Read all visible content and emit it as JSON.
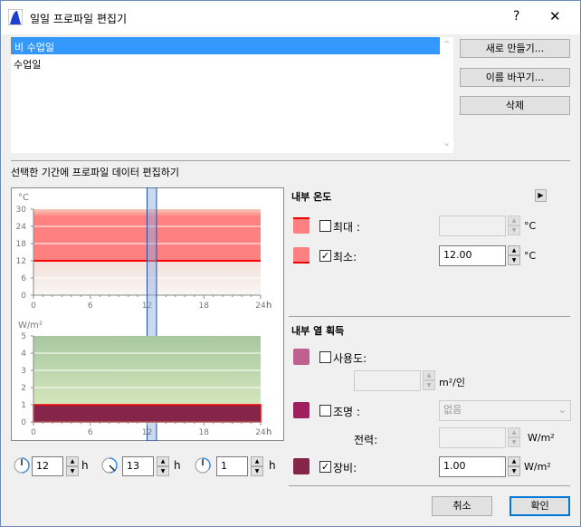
{
  "window": {
    "title": "일일 프로파일 편집기",
    "help": "?",
    "close": "✕"
  },
  "profiles": {
    "items": [
      {
        "label": "비 수업일",
        "selected": true
      },
      {
        "label": "수업일",
        "selected": false
      }
    ]
  },
  "buttons": {
    "new": "새로 만들기...",
    "rename": "이름 바꾸기...",
    "delete": "삭제",
    "cancel": "취소",
    "ok": "확인"
  },
  "section_edit": "선택한 기간에 프로파일 데이터 편집하기",
  "chart_data": [
    {
      "type": "area",
      "ylabel": "°C",
      "xlabel": "h",
      "xlim": [
        0,
        24
      ],
      "ylim": [
        0,
        30
      ],
      "xticks": [
        "0",
        "6",
        "12",
        "18",
        "24"
      ],
      "yticks": [
        "0",
        "6",
        "12",
        "18",
        "24",
        "30"
      ],
      "series": [
        {
          "name": "최소",
          "values": [
            [
              0,
              12
            ],
            [
              24,
              12
            ]
          ],
          "color": "#ff0000"
        }
      ],
      "fill_color": "#ff8080",
      "selection": [
        12,
        13
      ]
    },
    {
      "type": "area",
      "ylabel": "W/m²",
      "xlabel": "h",
      "xlim": [
        0,
        24
      ],
      "ylim": [
        0,
        5
      ],
      "xticks": [
        "0",
        "6",
        "12",
        "18",
        "24"
      ],
      "yticks": [
        "0",
        "1",
        "2",
        "3",
        "4",
        "5"
      ],
      "series": [
        {
          "name": "장비",
          "values": [
            [
              0,
              1
            ],
            [
              24,
              1
            ]
          ],
          "color": "#85254a"
        }
      ],
      "fill_color": "#c5dcb0",
      "selection": [
        12,
        13
      ]
    }
  ],
  "time": {
    "start": "12",
    "end": "13",
    "duration": "1",
    "unit": "h"
  },
  "temp": {
    "title": "내부 온도",
    "max": {
      "label": "최대 :",
      "checked": false,
      "value": "",
      "unit": "°C",
      "color": "#ff8080"
    },
    "min": {
      "label": "최소:",
      "checked": true,
      "value": "12.00",
      "unit": "°C",
      "color": "#ff8080"
    }
  },
  "gain": {
    "title": "내부 열 획득",
    "occupancy": {
      "label": "사용도:",
      "checked": false,
      "value": "",
      "unit": "m²/인",
      "color": "#c06090"
    },
    "lighting": {
      "label": "조명 :",
      "checked": false,
      "option": "없음",
      "color": "#a0205f"
    },
    "power": {
      "label": "전력:",
      "value": "",
      "unit": "W/m²"
    },
    "equipment": {
      "label": "장비:",
      "checked": true,
      "value": "1.00",
      "unit": "W/m²",
      "color": "#85254a"
    }
  }
}
